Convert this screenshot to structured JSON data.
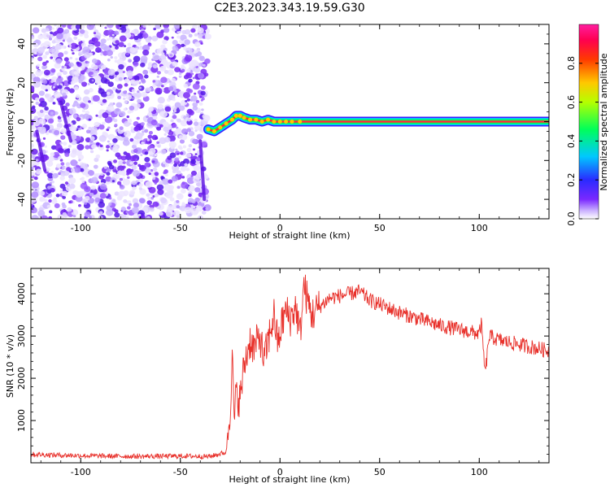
{
  "title": "C2E3.2023.343.19.59.G30",
  "colors": {
    "snr_line": "#e8302a",
    "axes": "#000000",
    "background": "#ffffff"
  },
  "chart_data": [
    {
      "type": "heatmap",
      "xlabel": "Height of straight line (km)",
      "ylabel": "Frequency (Hz)",
      "xlim": [
        -125,
        135
      ],
      "ylim": [
        -50,
        50
      ],
      "x_ticks": [
        -100,
        -50,
        0,
        50,
        100
      ],
      "y_ticks": [
        -40,
        -20,
        0,
        20,
        40
      ],
      "grid": false,
      "colorbar": {
        "label": "Normalized spectral amplitude",
        "range": [
          0,
          1
        ],
        "ticks": [
          "0.0",
          "0.2",
          "0.4",
          "0.6",
          "0.8"
        ],
        "colormap": "rainbow (white-purple-blue-cyan-green-yellow-red-magenta)"
      },
      "regions": [
        {
          "description_x": [
            -125,
            -36
          ],
          "frequency": [
            -50,
            50
          ],
          "amplitude": "low, noisy (0.0–0.3)"
        },
        {
          "description_x": [
            -36,
            10
          ],
          "frequency": [
            -5,
            5
          ],
          "amplitude": "transition (0.3–0.9)"
        },
        {
          "description_x": [
            10,
            135
          ],
          "frequency": [
            -1,
            1
          ],
          "amplitude": "peak ~1.0 at 0 Hz"
        }
      ],
      "ridge": {
        "x": [
          -36,
          -33,
          -30,
          -27,
          -24,
          -22,
          -20,
          -18,
          -15,
          -12,
          -9,
          -6,
          -3,
          0,
          3,
          6,
          10,
          135
        ],
        "y": [
          -4,
          -5,
          -3,
          -1,
          1,
          3,
          3,
          2,
          1,
          1,
          0,
          1,
          0,
          0,
          0,
          0,
          0,
          0
        ]
      }
    },
    {
      "type": "line",
      "xlabel": "Height of straight line (km)",
      "ylabel": "SNR (10 * v/v)",
      "xlim": [
        -125,
        135
      ],
      "ylim": [
        0,
        4600
      ],
      "x_ticks": [
        -100,
        -50,
        0,
        50,
        100
      ],
      "y_ticks": [
        1000,
        2000,
        3000,
        4000
      ],
      "grid": false,
      "series": [
        {
          "color": "#e8302a",
          "x": [
            -125,
            -110,
            -90,
            -70,
            -50,
            -35,
            -27,
            -25,
            -24,
            -23,
            -22,
            -20,
            -18,
            -15,
            -13,
            -10,
            -8,
            -5,
            -3,
            -1,
            1,
            3,
            5,
            8,
            10,
            12,
            14,
            16,
            20,
            25,
            30,
            35,
            40,
            45,
            50,
            60,
            70,
            80,
            90,
            100,
            101,
            103,
            105,
            110,
            120,
            130,
            135
          ],
          "y": [
            200,
            180,
            160,
            150,
            160,
            150,
            250,
            1300,
            2500,
            1000,
            1600,
            1500,
            2300,
            2900,
            2700,
            3000,
            2400,
            3100,
            3500,
            2800,
            3300,
            3600,
            3400,
            3700,
            3000,
            4200,
            3800,
            3500,
            3700,
            3900,
            3950,
            4000,
            4050,
            3850,
            3750,
            3550,
            3400,
            3250,
            3150,
            3050,
            3300,
            2100,
            3000,
            2900,
            2800,
            2700,
            2650
          ]
        }
      ]
    }
  ]
}
